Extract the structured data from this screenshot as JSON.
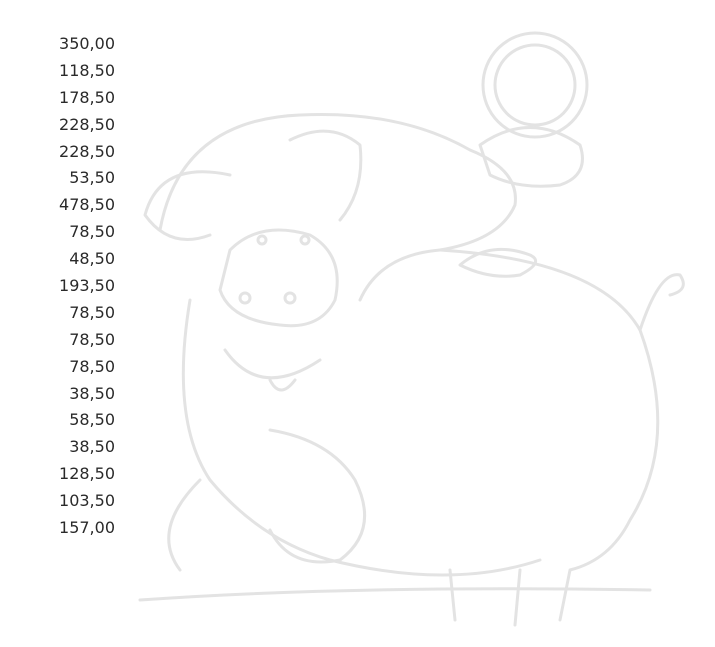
{
  "amounts": [
    "350,00",
    "118,50",
    "178,50",
    "228,50",
    "228,50",
    "53,50",
    "478,50",
    "78,50",
    "48,50",
    "193,50",
    "78,50",
    "78,50",
    "78,50",
    "38,50",
    "58,50",
    "38,50",
    "128,50",
    "103,50",
    "157,00"
  ]
}
